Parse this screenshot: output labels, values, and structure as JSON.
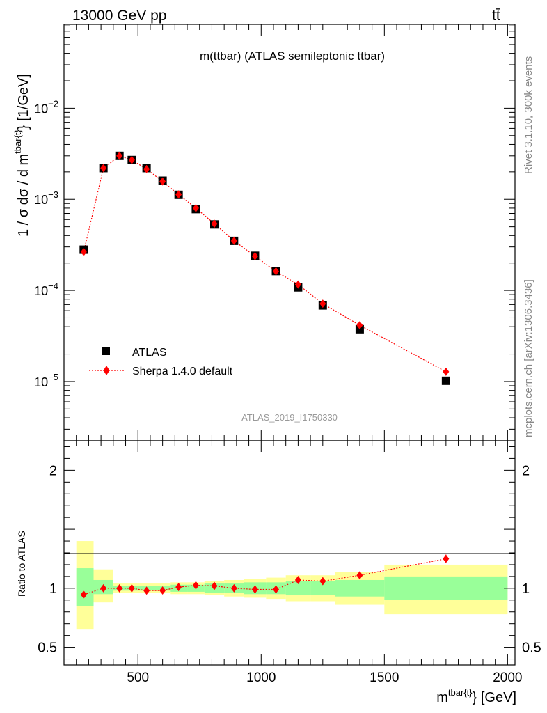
{
  "header": {
    "energy_label": "13000 GeV pp",
    "process_label": "tt̄"
  },
  "side_labels": {
    "rivet": "Rivet 3.1.10,  300k events",
    "mcplots": "mcplots.cern.ch [arXiv:1306.3436]"
  },
  "chart_data": [
    {
      "type": "scatter",
      "panel": "main",
      "title": "m(ttbar) (ATLAS semileptonic ttbar)",
      "watermark": "ATLAS_2019_I1750330",
      "ylabel_parts": {
        "prefix": "1 / σ dσ / d m",
        "sup": "tbar{t}",
        "suffix": "} [1/GeV]"
      },
      "y_scale": "log",
      "xlim": [
        200,
        2030
      ],
      "ylim_log10": [
        -5.65,
        -1.08
      ],
      "y_ticks": [
        {
          "base": "10",
          "exp": "−2",
          "value": 0.01
        },
        {
          "base": "10",
          "exp": "−3",
          "value": 0.001
        },
        {
          "base": "10",
          "exp": "−4",
          "value": 0.0001
        },
        {
          "base": "10",
          "exp": "−5",
          "value": 1e-05
        }
      ],
      "legend": [
        {
          "label": "ATLAS",
          "marker": "square",
          "color": "#000000"
        },
        {
          "label": "Sherpa 1.4.0 default",
          "marker": "diamond",
          "color": "#ff0000"
        }
      ],
      "legend_position": "bottom-left",
      "series": [
        {
          "name": "ATLAS",
          "x": [
            280,
            360,
            425,
            475,
            535,
            600,
            665,
            735,
            810,
            890,
            975,
            1060,
            1150,
            1250,
            1400,
            1750
          ],
          "values": [
            0.00028,
            0.0022,
            0.003,
            0.0027,
            0.0022,
            0.0016,
            0.00112,
            0.00078,
            0.00053,
            0.00035,
            0.00024,
            0.000163,
            0.000108,
            6.85e-05,
            3.75e-05,
            1.02e-05
          ]
        },
        {
          "name": "Sherpa 1.4.0 default",
          "x": [
            280,
            360,
            425,
            475,
            535,
            600,
            665,
            735,
            810,
            890,
            975,
            1060,
            1150,
            1250,
            1400,
            1750
          ],
          "values": [
            0.000265,
            0.0022,
            0.003,
            0.0027,
            0.00215,
            0.00157,
            0.00113,
            0.0008,
            0.00054,
            0.00035,
            0.000238,
            0.000162,
            0.000116,
            7.15e-05,
            4.15e-05,
            1.28e-05
          ]
        }
      ]
    },
    {
      "type": "scatter",
      "panel": "ratio",
      "ylabel": "Ratio to ATLAS",
      "xlabel_parts": {
        "prefix": "m",
        "sup": "tbar{t}",
        "suffix": "} [GeV]"
      },
      "xlim": [
        200,
        2030
      ],
      "ylim": [
        0.35,
        2.25
      ],
      "x_ticks": [
        500,
        1000,
        1500,
        2000
      ],
      "y_ticks": [
        0.5,
        1,
        2
      ],
      "bins": [
        {
          "lo": 250,
          "hi": 320,
          "green": [
            0.85,
            1.17
          ],
          "yellow": [
            0.65,
            1.4
          ]
        },
        {
          "lo": 320,
          "hi": 400,
          "green": [
            0.95,
            1.07
          ],
          "yellow": [
            0.88,
            1.16
          ]
        },
        {
          "lo": 400,
          "hi": 450,
          "green": [
            0.98,
            1.02
          ],
          "yellow": [
            0.96,
            1.04
          ]
        },
        {
          "lo": 450,
          "hi": 500,
          "green": [
            0.98,
            1.02
          ],
          "yellow": [
            0.96,
            1.04
          ]
        },
        {
          "lo": 500,
          "hi": 570,
          "green": [
            0.98,
            1.02
          ],
          "yellow": [
            0.96,
            1.04
          ]
        },
        {
          "lo": 570,
          "hi": 630,
          "green": [
            0.98,
            1.02
          ],
          "yellow": [
            0.96,
            1.04
          ]
        },
        {
          "lo": 630,
          "hi": 700,
          "green": [
            0.97,
            1.03
          ],
          "yellow": [
            0.95,
            1.05
          ]
        },
        {
          "lo": 700,
          "hi": 770,
          "green": [
            0.97,
            1.03
          ],
          "yellow": [
            0.95,
            1.05
          ]
        },
        {
          "lo": 770,
          "hi": 850,
          "green": [
            0.96,
            1.04
          ],
          "yellow": [
            0.94,
            1.06
          ]
        },
        {
          "lo": 850,
          "hi": 930,
          "green": [
            0.96,
            1.04
          ],
          "yellow": [
            0.93,
            1.07
          ]
        },
        {
          "lo": 930,
          "hi": 1020,
          "green": [
            0.95,
            1.05
          ],
          "yellow": [
            0.92,
            1.08
          ]
        },
        {
          "lo": 1020,
          "hi": 1100,
          "green": [
            0.95,
            1.05
          ],
          "yellow": [
            0.91,
            1.09
          ]
        },
        {
          "lo": 1100,
          "hi": 1200,
          "green": [
            0.94,
            1.06
          ],
          "yellow": [
            0.89,
            1.11
          ]
        },
        {
          "lo": 1200,
          "hi": 1300,
          "green": [
            0.94,
            1.06
          ],
          "yellow": [
            0.89,
            1.11
          ]
        },
        {
          "lo": 1300,
          "hi": 1500,
          "green": [
            0.93,
            1.07
          ],
          "yellow": [
            0.86,
            1.14
          ]
        },
        {
          "lo": 1500,
          "hi": 2000,
          "green": [
            0.9,
            1.1
          ],
          "yellow": [
            0.78,
            1.2
          ]
        }
      ],
      "series": [
        {
          "name": "Sherpa 1.4.0 default",
          "x": [
            280,
            360,
            425,
            475,
            535,
            600,
            665,
            735,
            810,
            890,
            975,
            1060,
            1150,
            1250,
            1400,
            1750
          ],
          "values": [
            0.946,
            1.0,
            1.0,
            1.0,
            0.98,
            0.981,
            1.01,
            1.025,
            1.02,
            1.0,
            0.99,
            0.99,
            1.07,
            1.06,
            1.11,
            1.25
          ],
          "err": [
            0.02,
            0.01,
            0.01,
            0.01,
            0.01,
            0.01,
            0.015,
            0.015,
            0.015,
            0.015,
            0.02,
            0.02,
            0.025,
            0.025,
            0.03,
            0.035
          ]
        }
      ]
    }
  ]
}
